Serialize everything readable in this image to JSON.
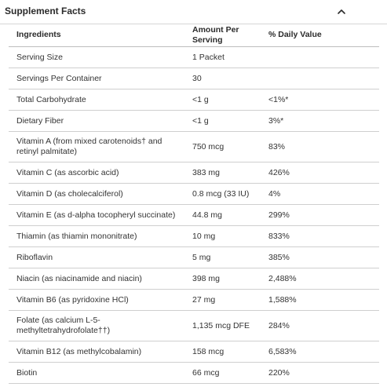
{
  "section": {
    "title": "Supplement Facts",
    "toggle_icon": "chevron-up-icon"
  },
  "table": {
    "headers": [
      "Ingredients",
      "Amount Per Serving",
      "% Daily Value"
    ],
    "rows": [
      [
        "Serving Size",
        "1 Packet",
        ""
      ],
      [
        "Servings Per Container",
        "30",
        ""
      ],
      [
        "Total Carbohydrate",
        "<1 g",
        "<1%*"
      ],
      [
        "Dietary Fiber",
        "<1 g",
        "3%*"
      ],
      [
        "Vitamin A (from mixed carotenoids† and retinyl palmitate)",
        "750 mcg",
        "83%"
      ],
      [
        "Vitamin C (as ascorbic acid)",
        "383 mg",
        "426%"
      ],
      [
        "Vitamin D (as cholecalciferol)",
        "0.8 mcg (33 IU)",
        "4%"
      ],
      [
        "Vitamin E (as d-alpha tocopheryl succinate)",
        "44.8 mg",
        "299%"
      ],
      [
        "Thiamin (as thiamin mononitrate)",
        "10 mg",
        "833%"
      ],
      [
        "Riboflavin",
        "5 mg",
        "385%"
      ],
      [
        "Niacin (as niacinamide and niacin)",
        "398 mg",
        "2,488%"
      ],
      [
        "Vitamin B6 (as pyridoxine HCl)",
        "27 mg",
        "1,588%"
      ],
      [
        "Folate (as calcium L-5-methyltetrahydrofolate††)",
        "1,135 mcg DFE",
        "284%"
      ],
      [
        "Vitamin B12 (as methylcobalamin)",
        "158 mcg",
        "6,583%"
      ],
      [
        "Biotin",
        "66 mcg",
        "220%"
      ]
    ]
  }
}
